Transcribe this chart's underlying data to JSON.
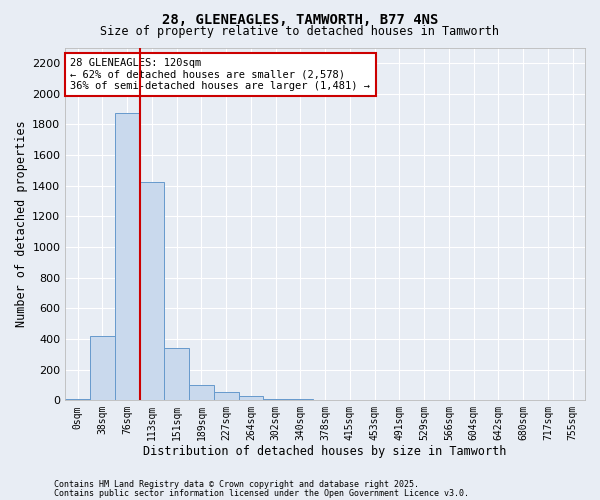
{
  "title": "28, GLENEAGLES, TAMWORTH, B77 4NS",
  "subtitle": "Size of property relative to detached houses in Tamworth",
  "xlabel": "Distribution of detached houses by size in Tamworth",
  "ylabel": "Number of detached properties",
  "footnote1": "Contains HM Land Registry data © Crown copyright and database right 2025.",
  "footnote2": "Contains public sector information licensed under the Open Government Licence v3.0.",
  "bar_color": "#c9d9ed",
  "bar_edge_color": "#6699cc",
  "background_color": "#e8edf4",
  "plot_bg_color": "#e8edf4",
  "grid_color": "#ffffff",
  "vline_color": "#cc0000",
  "annotation_text": "28 GLENEAGLES: 120sqm\n← 62% of detached houses are smaller (2,578)\n36% of semi-detached houses are larger (1,481) →",
  "vline_x_idx": 2.5,
  "ylim": [
    0,
    2300
  ],
  "yticks": [
    0,
    200,
    400,
    600,
    800,
    1000,
    1200,
    1400,
    1600,
    1800,
    2000,
    2200
  ],
  "categories": [
    "0sqm",
    "38sqm",
    "76sqm",
    "113sqm",
    "151sqm",
    "189sqm",
    "227sqm",
    "264sqm",
    "302sqm",
    "340sqm",
    "378sqm",
    "415sqm",
    "453sqm",
    "491sqm",
    "529sqm",
    "566sqm",
    "604sqm",
    "642sqm",
    "680sqm",
    "717sqm",
    "755sqm"
  ],
  "values": [
    10,
    420,
    1870,
    1420,
    340,
    100,
    55,
    30,
    10,
    5,
    0,
    0,
    0,
    0,
    0,
    0,
    0,
    0,
    0,
    0,
    0
  ],
  "figsize": [
    6.0,
    5.0
  ],
  "dpi": 100
}
